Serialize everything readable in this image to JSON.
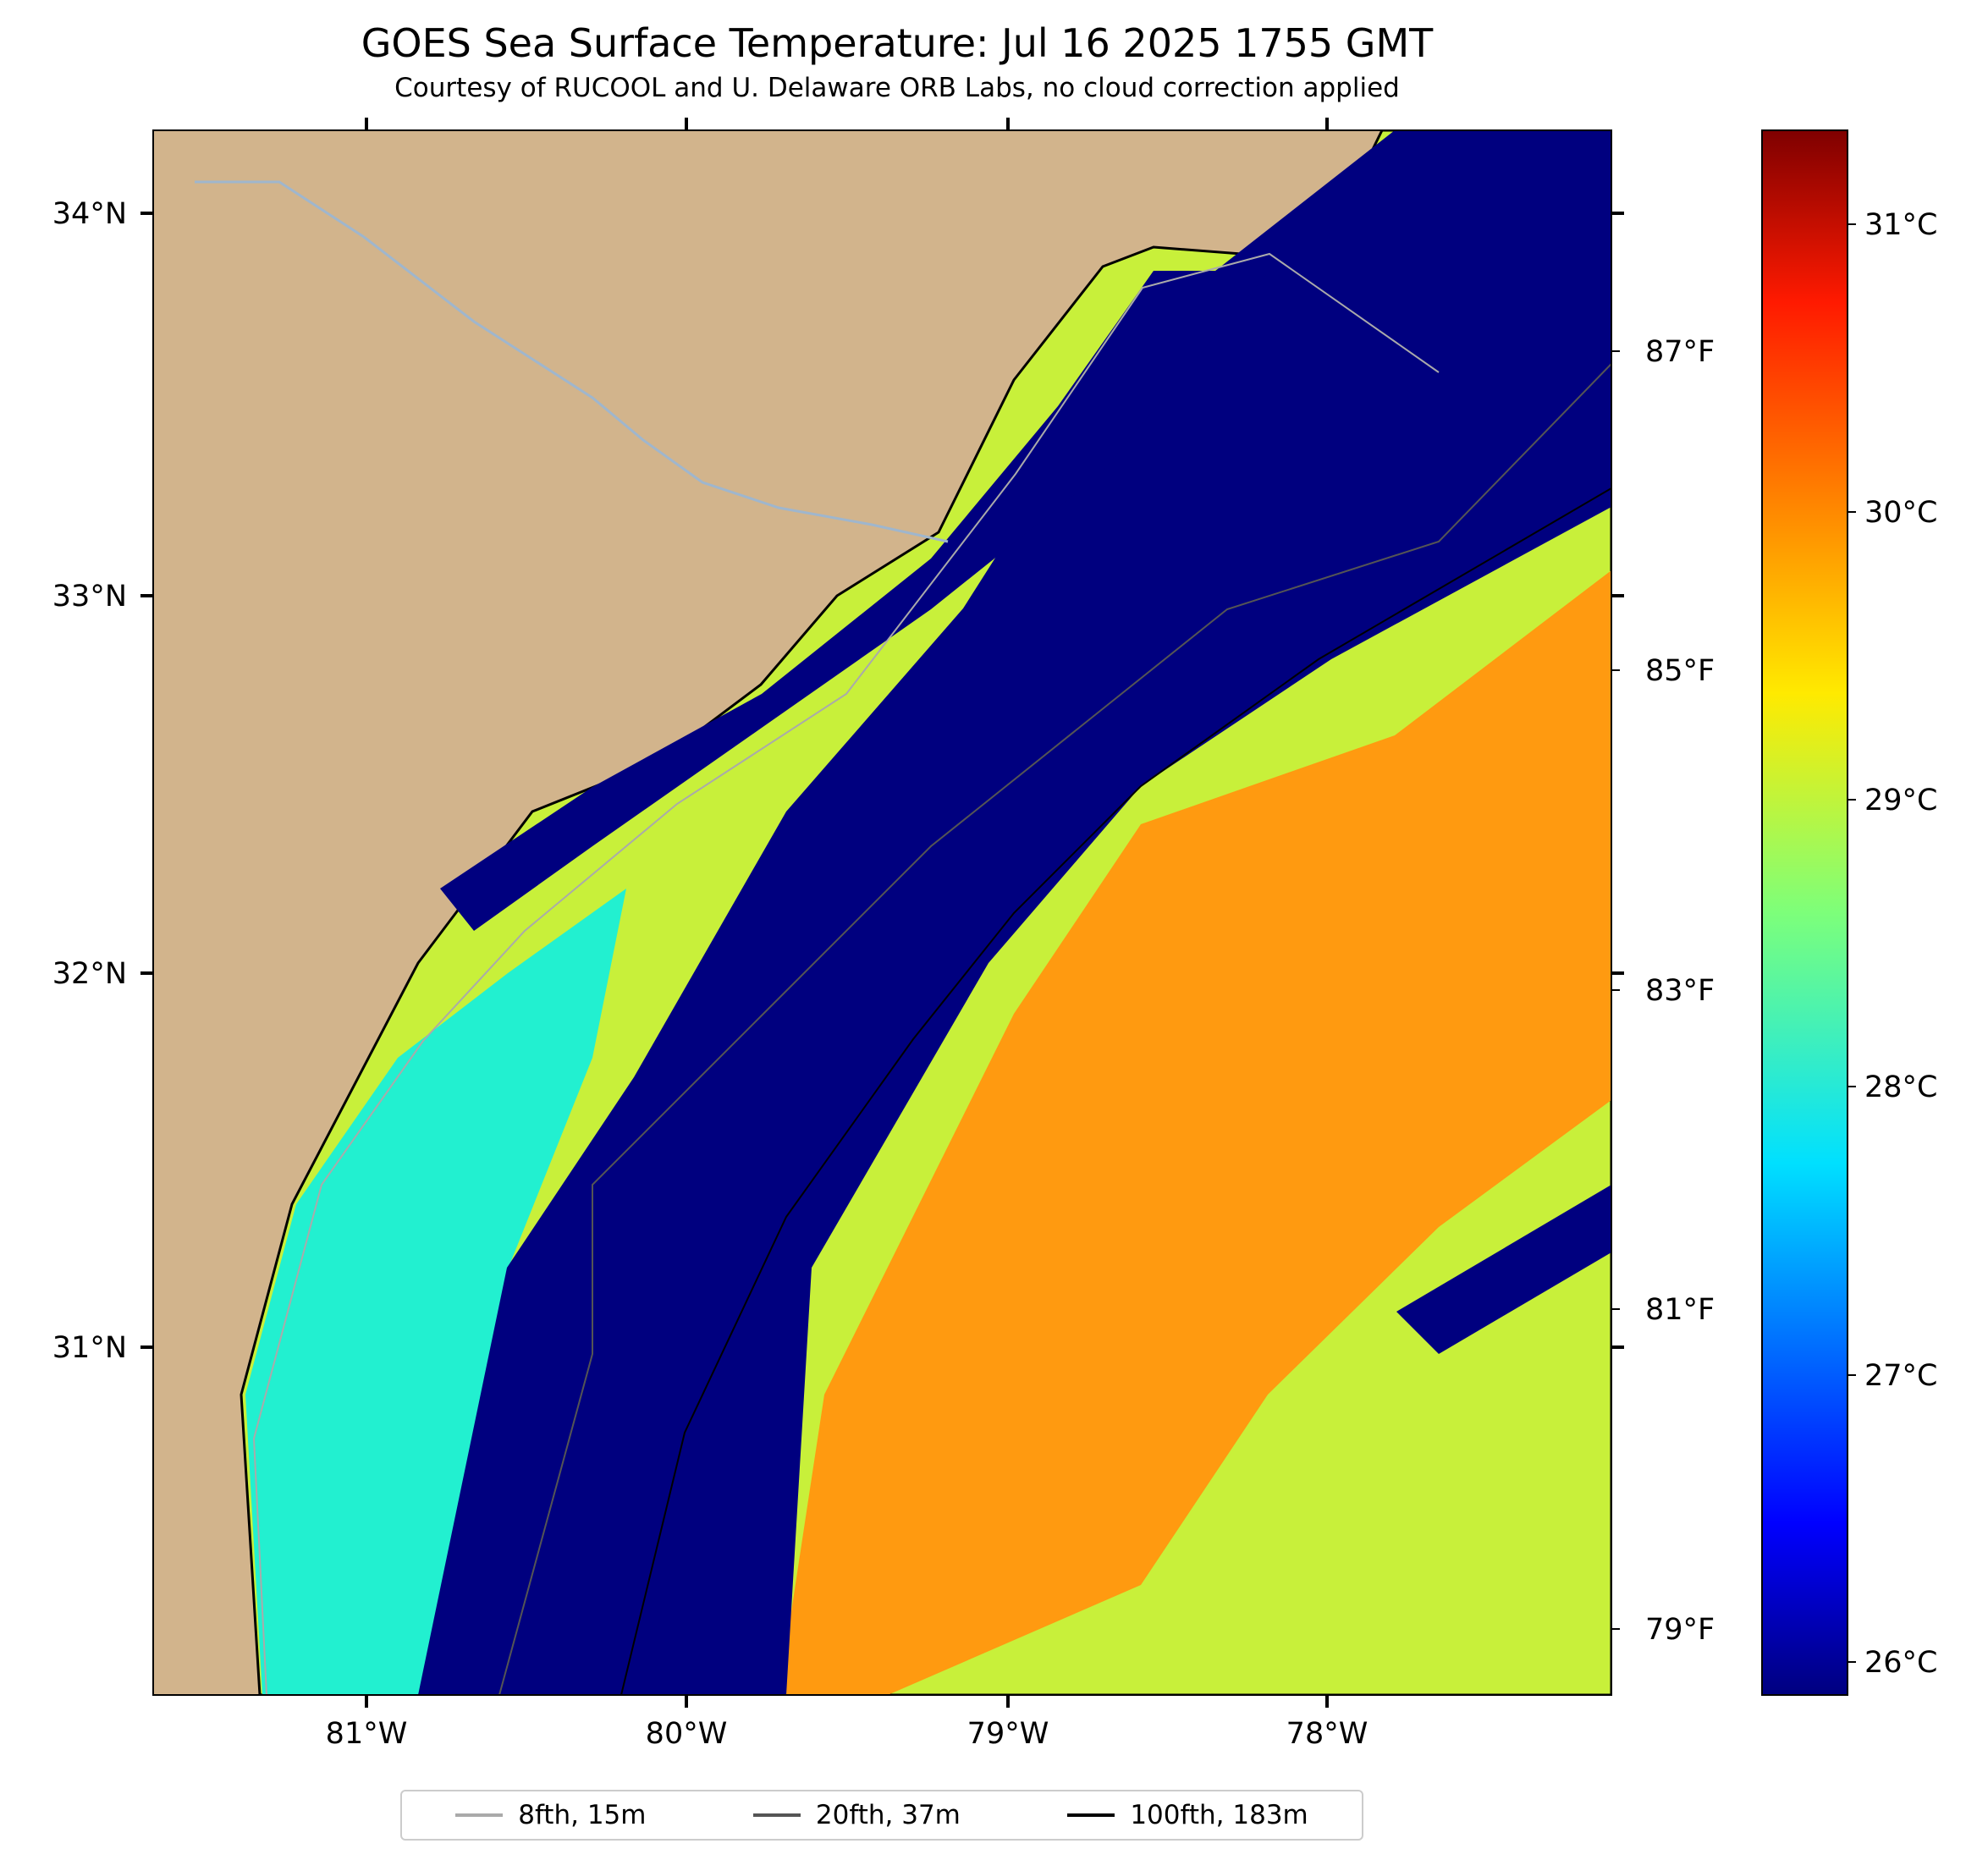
{
  "title": "GOES Sea Surface Temperature: Jul 16 2025 1755 GMT",
  "subtitle": "Courtesy of RUCOOL and U. Delaware ORB Labs, no cloud correction applied",
  "map": {
    "lon_ticks": [
      "81°W",
      "80°W",
      "79°W",
      "78°W"
    ],
    "lat_ticks": [
      "34°N",
      "33°N",
      "32°N",
      "31°N"
    ],
    "f_ticks": [
      "87°F",
      "85°F",
      "83°F",
      "81°F",
      "79°F"
    ],
    "colors": {
      "land": "#d2b48c",
      "ocean_navy": "#00007f",
      "river": "#9fb6cd"
    }
  },
  "colorbar": {
    "ticks": [
      "31°C",
      "30°C",
      "29°C",
      "28°C",
      "27°C",
      "26°C"
    ],
    "range_c": [
      25.8,
      31.8
    ]
  },
  "legend": [
    {
      "label": "8fth, 15m",
      "color": "#aaaaaa"
    },
    {
      "label": "20fth, 37m",
      "color": "#555555"
    },
    {
      "label": "100fth, 183m",
      "color": "#000000"
    }
  ]
}
